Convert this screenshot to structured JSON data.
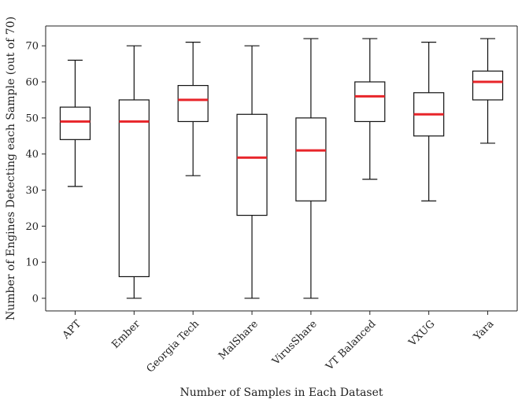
{
  "chart_data": {
    "type": "boxplot",
    "title": "",
    "xlabel": "Number of Samples in Each Dataset",
    "ylabel": "Number of Engines Detecting each Sample (out of 70)",
    "ylim": [
      -3.5,
      75.5
    ],
    "yticks": [
      0,
      10,
      20,
      30,
      40,
      50,
      60,
      70
    ],
    "grid": false,
    "median_color": "#e8252a",
    "box_color": "#111111",
    "categories": [
      "APT",
      "Ember",
      "Georgia Tech",
      "MalShare",
      "VirusShare",
      "VT Balanced",
      "VXUG",
      "Yara"
    ],
    "boxes": [
      {
        "label": "APT",
        "whisker_low": 31,
        "q1": 44,
        "median": 49,
        "q3": 53,
        "whisker_high": 66
      },
      {
        "label": "Ember",
        "whisker_low": 0,
        "q1": 6,
        "median": 49,
        "q3": 55,
        "whisker_high": 70
      },
      {
        "label": "Georgia Tech",
        "whisker_low": 34,
        "q1": 49,
        "median": 55,
        "q3": 59,
        "whisker_high": 71
      },
      {
        "label": "MalShare",
        "whisker_low": 0,
        "q1": 23,
        "median": 39,
        "q3": 51,
        "whisker_high": 70
      },
      {
        "label": "VirusShare",
        "whisker_low": 0,
        "q1": 27,
        "median": 41,
        "q3": 50,
        "whisker_high": 72
      },
      {
        "label": "VT Balanced",
        "whisker_low": 33,
        "q1": 49,
        "median": 56,
        "q3": 60,
        "whisker_high": 72
      },
      {
        "label": "VXUG",
        "whisker_low": 27,
        "q1": 45,
        "median": 51,
        "q3": 57,
        "whisker_high": 71
      },
      {
        "label": "Yara",
        "whisker_low": 43,
        "q1": 55,
        "median": 60,
        "q3": 63,
        "whisker_high": 72
      }
    ]
  }
}
